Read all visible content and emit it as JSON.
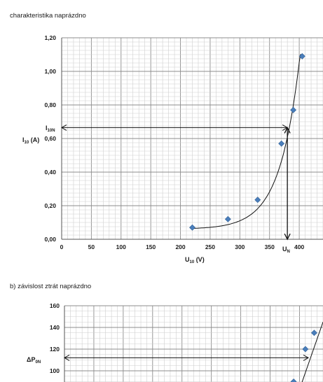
{
  "chart_data": [
    {
      "type": "scatter",
      "title": "charakteristika naprázdno",
      "xlim": [
        0,
        440
      ],
      "ylim": [
        0,
        1.2
      ],
      "x_ticks": [
        "0",
        "50",
        "100",
        "150",
        "200",
        "250",
        "300",
        "350",
        "400"
      ],
      "y_ticks": [
        "0,00",
        "0,20",
        "0,40",
        "0,60",
        "0,80",
        "1,00",
        "1,20"
      ],
      "xlabel": {
        "main": "U",
        "sub": "10",
        "unit": " (V)"
      },
      "ylabel": {
        "main": "I",
        "sub": "10",
        "unit": " (A)"
      },
      "grid": true,
      "marker_color": "#4a7ebb",
      "series": [
        {
          "x": [
            220,
            280,
            330,
            370,
            390,
            405
          ],
          "y": [
            0.07,
            0.12,
            0.235,
            0.57,
            0.77,
            1.09
          ]
        }
      ],
      "annotations": {
        "i10n": {
          "main": "I",
          "sub": "10N",
          "value": 0.665
        },
        "un": {
          "main": "U",
          "sub": "N",
          "value": 380
        }
      }
    },
    {
      "type": "scatter",
      "title": "b) závislost ztrát naprázdno",
      "xlim": [
        0,
        440
      ],
      "ylim": [
        80,
        160
      ],
      "y_ticks": [
        "100",
        "120",
        "140",
        "160"
      ],
      "grid": true,
      "marker_color": "#4a7ebb",
      "series": [
        {
          "x": [
            390,
            410,
            425
          ],
          "y": [
            90,
            120,
            135
          ]
        }
      ],
      "annotations": {
        "dp0n": {
          "main": "ΔP",
          "sub": "0N",
          "value": 112
        }
      }
    }
  ]
}
